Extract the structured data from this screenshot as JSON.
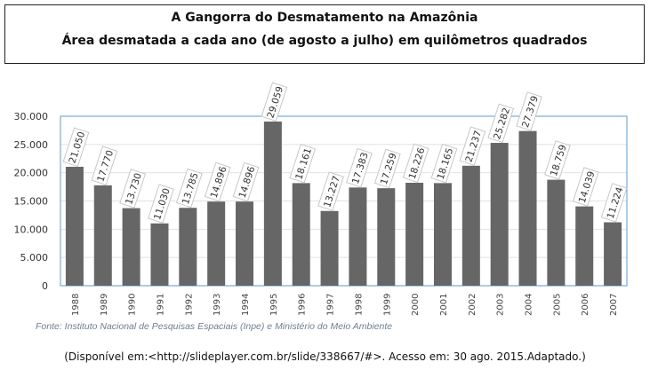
{
  "title_box": {
    "line1": "A Gangorra do Desmatamento na Amazônia",
    "line2": "Área desmatada a cada ano (de agosto a julho) em quilômetros quadrados"
  },
  "chart_data": {
    "type": "bar",
    "title": "",
    "xlabel": "",
    "ylabel": "",
    "ylim": [
      0,
      30000
    ],
    "yticks": [
      0,
      5000,
      10000,
      15000,
      20000,
      25000,
      30000
    ],
    "ytick_labels": [
      "0",
      "5.000",
      "10.000",
      "15.000",
      "20.000",
      "25.000",
      "30.000"
    ],
    "grid": true,
    "bar_color": "#666666",
    "categories": [
      "1988",
      "1989",
      "1990",
      "1991",
      "1992",
      "1993",
      "1994",
      "1995",
      "1996",
      "1997",
      "1998",
      "1999",
      "2000",
      "2001",
      "2002",
      "2003",
      "2004",
      "2005",
      "2006",
      "2007"
    ],
    "values": [
      21050,
      17770,
      13730,
      11030,
      13785,
      14896,
      14896,
      29059,
      18161,
      13227,
      17383,
      17259,
      18226,
      18165,
      21237,
      25282,
      27379,
      18759,
      14039,
      11224
    ],
    "data_labels": [
      "21.050",
      "17.770",
      "13.730",
      "11.030",
      "13.785",
      "14.896",
      "14.896",
      "29.059",
      "18.161",
      "13.227",
      "17.383",
      "17.259",
      "18.226",
      "18.165",
      "21.237",
      "25.282",
      "27.379",
      "18.759",
      "14.039",
      "11.224"
    ]
  },
  "source": "Fonte: Instituto Nacional de Pesquisas Espaciais (Inpe) e Ministério do Meio Ambiente",
  "caption": "(Disponível em:<http://slideplayer.com.br/slide/338667/#>. Acesso em: 30 ago. 2015.Adaptado.)"
}
